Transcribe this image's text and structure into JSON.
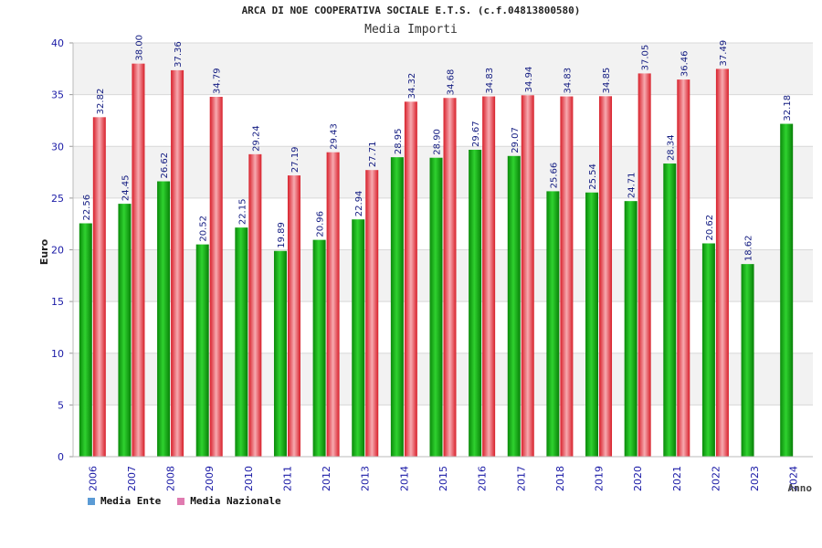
{
  "chart_data": {
    "type": "bar",
    "title": "ARCA DI NOE COOPERATIVA SOCIALE E.T.S. (c.f.04813800580)",
    "subtitle": "Media Importi",
    "xlabel": "Anno",
    "ylabel": "Euro",
    "ylim": [
      0,
      40
    ],
    "yticks": [
      "0",
      "5",
      "10",
      "15",
      "20",
      "25",
      "30",
      "35",
      "40"
    ],
    "grid": true,
    "legend_position": "bottom-left",
    "categories": [
      "2006",
      "2007",
      "2008",
      "2009",
      "2010",
      "2011",
      "2012",
      "2013",
      "2014",
      "2015",
      "2016",
      "2017",
      "2018",
      "2019",
      "2020",
      "2021",
      "2022",
      "2023",
      "2024"
    ],
    "series": [
      {
        "name": "Media Ente",
        "legend_color": "#5b9bd5",
        "bar_color": "#11b011",
        "values": [
          22.56,
          24.45,
          26.62,
          20.52,
          22.15,
          19.89,
          20.96,
          22.94,
          28.95,
          28.9,
          29.67,
          29.07,
          25.66,
          25.54,
          24.71,
          28.34,
          20.62,
          18.62,
          32.18
        ],
        "labels": [
          "22.56",
          "24.45",
          "26.62",
          "20.52",
          "22.15",
          "19.89",
          "20.96",
          "22.94",
          "28.95",
          "28.90",
          "29.67",
          "29.07",
          "25.66",
          "25.54",
          "24.71",
          "28.34",
          "20.62",
          "18.62",
          "32.18"
        ]
      },
      {
        "name": "Media Nazionale",
        "legend_color": "#e07bb0",
        "bar_color": "#e0303a",
        "values": [
          32.82,
          38.0,
          37.36,
          34.79,
          29.24,
          27.19,
          29.43,
          27.71,
          34.32,
          34.68,
          34.83,
          34.94,
          34.83,
          34.85,
          37.05,
          36.46,
          37.49,
          null,
          null
        ],
        "labels": [
          "32.82",
          "38.00",
          "37.36",
          "34.79",
          "29.24",
          "27.19",
          "29.43",
          "27.71",
          "34.32",
          "34.68",
          "34.83",
          "34.94",
          "34.83",
          "34.85",
          "37.05",
          "36.46",
          "37.49",
          null,
          null
        ]
      }
    ]
  }
}
